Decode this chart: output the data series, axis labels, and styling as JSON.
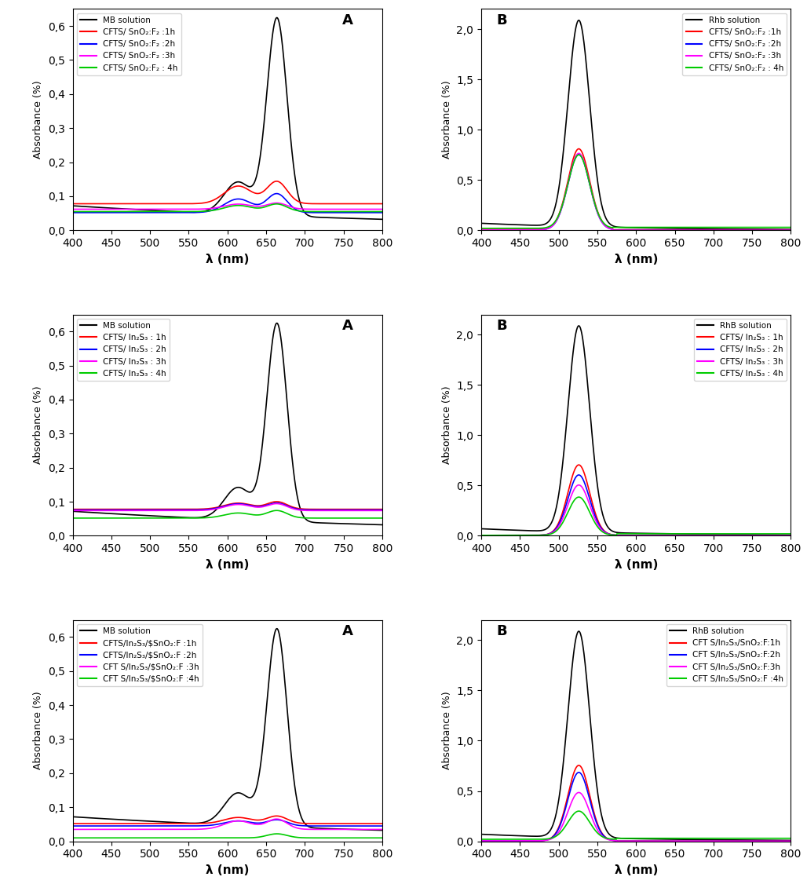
{
  "xlim": [
    400,
    800
  ],
  "MB_ylim": [
    0.0,
    0.65
  ],
  "RhB_ylim": [
    0.0,
    2.2
  ],
  "MB_yticks": [
    0.0,
    0.1,
    0.2,
    0.3,
    0.4,
    0.5,
    0.6
  ],
  "RhB_yticks": [
    0.0,
    0.5,
    1.0,
    1.5,
    2.0
  ],
  "xlabel": "λ (nm)",
  "ylabel": "Absorbance (%)",
  "colors": {
    "black": "#000000",
    "red": "#ff0000",
    "blue": "#0000ff",
    "magenta": "#ff00ff",
    "green": "#00cc00"
  },
  "row1": {
    "MB_legend": [
      "MB solution",
      "CFTS/ SnO₂:F₂ :1h",
      "CFTS/ SnO₂:F₂ :2h",
      "CFTS/ SnO₂:F₂ :3h",
      "CFTS/ SnO₂:F₂ : 4h"
    ],
    "RhB_legend": [
      "Rhb solution",
      "CFTS/ SnO₂:F₂ :1h",
      "CFTS/ SnO₂:F₂ :2h",
      "CFTS/ SnO₂:F₂ :3h",
      "CFTS/ SnO₂:F₂ : 4h"
    ],
    "panel_A": "A",
    "panel_B": "B",
    "B_legend_loc": "upper right",
    "A_legend_loc": "upper left"
  },
  "row2": {
    "MB_legend": [
      "MB solution",
      "CFTS/ In₂S₃ : 1h",
      "CFTS/ In₂S₃ : 2h",
      "CFTS/ In₂S₃ : 3h",
      "CFTS/ In₂S₃ : 4h"
    ],
    "RhB_legend": [
      "RhB solution",
      "CFTS/ In₂S₃ : 1h",
      "CFTS/ In₂S₃ : 2h",
      "CFTS/ In₂S₃ : 3h",
      "CFTS/ In₂S₃ : 4h"
    ],
    "panel_A": "A",
    "panel_B": "B",
    "B_legend_loc": "upper right",
    "A_legend_loc": "upper left"
  },
  "row3": {
    "MB_legend": [
      "MB solution",
      "CFTS/In₂S₃/$SnO₂:F :1h",
      "CFTS/In₂S₃/$SnO₂:F :2h",
      "CFT S/In₂S₃/$SnO₂:F :3h",
      "CFT S/In₂S₃/$SnO₂:F :4h"
    ],
    "RhB_legend": [
      "RhB solution",
      "CFT S/In₂S₃/SnO₂:F:1h",
      "CFT S/In₂S₃/SnO₂:F:2h",
      "CFT S/In₂S₃/SnO₂:F:3h",
      "CFT S/In₂S₃/SnO₂:F :4h"
    ],
    "panel_A": "A",
    "panel_B": "B",
    "B_legend_loc": "upper right",
    "A_legend_loc": "upper left"
  }
}
